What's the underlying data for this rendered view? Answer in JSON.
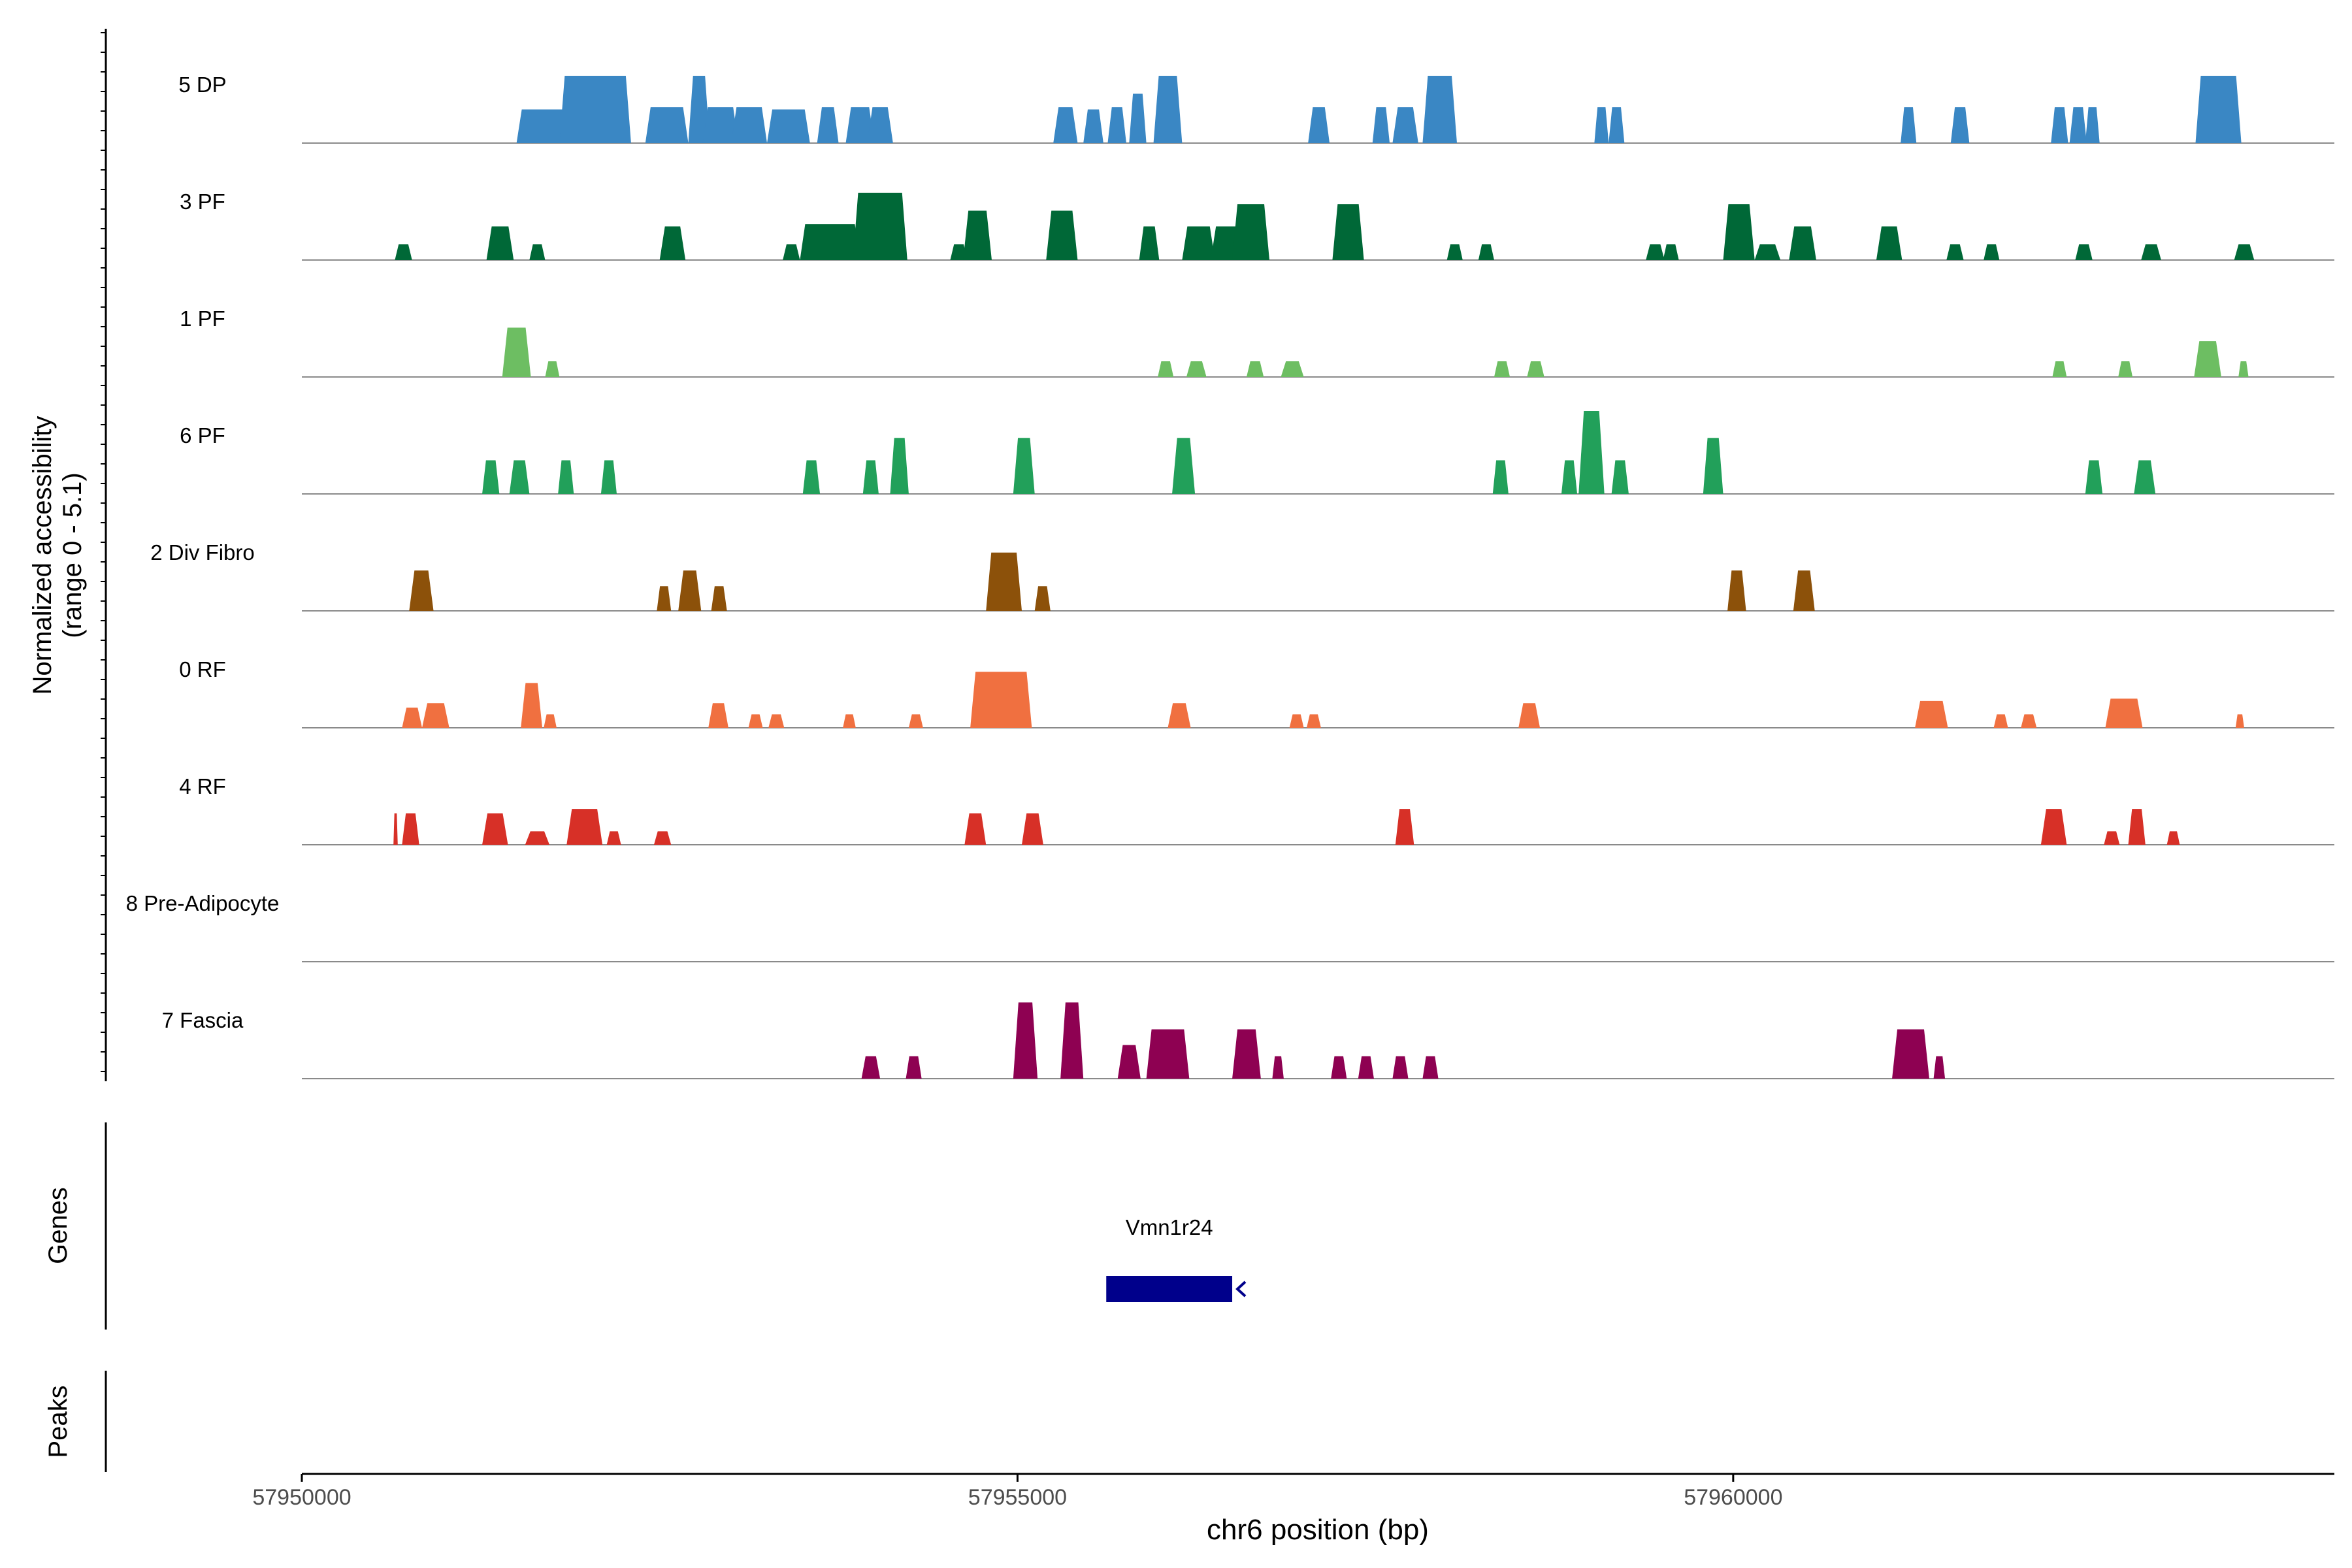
{
  "chart_data": {
    "type": "area",
    "title": "",
    "ylabel_line1": "Normalized accessibility",
    "ylabel_line2": "(range 0 - 5.1)",
    "ylim": [
      0,
      5.1
    ],
    "xlabel": "chr6 position (bp)",
    "xlim": [
      57950000,
      57964200
    ],
    "x_ticks": [
      57950000,
      57955000,
      57960000
    ],
    "x_tick_labels": [
      "57950000",
      "57955000",
      "57960000"
    ],
    "genes_label": "Genes",
    "peaks_label": "Peaks",
    "genes": [
      {
        "name": "Vmn1r24",
        "start": 57955620,
        "end": 57956500,
        "strand": "-",
        "color": "#00008B"
      }
    ],
    "series": [
      {
        "name": "5 DP",
        "color": "#3A87C4",
        "peaks": [
          [
            57951500,
            57951900,
            1.5
          ],
          [
            57951800,
            57952300,
            3.0
          ],
          [
            57952400,
            57952700,
            1.6
          ],
          [
            57952700,
            57952850,
            3.0
          ],
          [
            57952800,
            57953050,
            1.6
          ],
          [
            57953000,
            57953250,
            1.6
          ],
          [
            57953250,
            57953550,
            1.5
          ],
          [
            57953600,
            57953750,
            1.6
          ],
          [
            57953800,
            57954000,
            1.6
          ],
          [
            57953950,
            57954130,
            1.6
          ],
          [
            57955250,
            57955420,
            1.6
          ],
          [
            57955460,
            57955600,
            1.5
          ],
          [
            57955630,
            57955760,
            1.6
          ],
          [
            57955780,
            57955900,
            2.2
          ],
          [
            57955950,
            57956150,
            3.0
          ],
          [
            57957030,
            57957180,
            1.6
          ],
          [
            57957480,
            57957600,
            1.6
          ],
          [
            57957620,
            57957800,
            1.6
          ],
          [
            57957830,
            57958070,
            3.0
          ],
          [
            57959030,
            57959130,
            1.6
          ],
          [
            57959130,
            57959240,
            1.6
          ],
          [
            57961170,
            57961280,
            1.6
          ],
          [
            57961520,
            57961650,
            1.6
          ],
          [
            57962220,
            57962340,
            1.6
          ],
          [
            57962350,
            57962470,
            1.6
          ],
          [
            57962460,
            57962560,
            1.6
          ],
          [
            57963230,
            57963550,
            3.0
          ]
        ]
      },
      {
        "name": "3 PF",
        "color": "#006837",
        "peaks": [
          [
            57950650,
            57950770,
            0.7
          ],
          [
            57951290,
            57951480,
            1.5
          ],
          [
            57951590,
            57951700,
            0.7
          ],
          [
            57952500,
            57952680,
            1.5
          ],
          [
            57953360,
            57953480,
            0.7
          ],
          [
            57953480,
            57953900,
            1.6
          ],
          [
            57953850,
            57954230,
            3.0
          ],
          [
            57954530,
            57954650,
            0.7
          ],
          [
            57954620,
            57954820,
            2.2
          ],
          [
            57955200,
            57955420,
            2.2
          ],
          [
            57955850,
            57955990,
            1.5
          ],
          [
            57956150,
            57956380,
            1.5
          ],
          [
            57956350,
            57956560,
            1.5
          ],
          [
            57956500,
            57956760,
            2.5
          ],
          [
            57957200,
            57957420,
            2.5
          ],
          [
            57958000,
            57958110,
            0.7
          ],
          [
            57958220,
            57958330,
            0.7
          ],
          [
            57959390,
            57959520,
            0.7
          ],
          [
            57959510,
            57959620,
            0.7
          ],
          [
            57959930,
            57960150,
            2.5
          ],
          [
            57960150,
            57960330,
            0.7
          ],
          [
            57960390,
            57960580,
            1.5
          ],
          [
            57961000,
            57961180,
            1.5
          ],
          [
            57961490,
            57961610,
            0.7
          ],
          [
            57961750,
            57961860,
            0.7
          ],
          [
            57962390,
            57962510,
            0.7
          ],
          [
            57962850,
            57962990,
            0.7
          ],
          [
            57963500,
            57963640,
            0.7
          ]
        ]
      },
      {
        "name": "1 PF",
        "color": "#6DBE62",
        "peaks": [
          [
            57951400,
            57951600,
            2.2
          ],
          [
            57951700,
            57951800,
            0.7
          ],
          [
            57955980,
            57956090,
            0.7
          ],
          [
            57956180,
            57956320,
            0.7
          ],
          [
            57956600,
            57956720,
            0.7
          ],
          [
            57956840,
            57957000,
            0.7
          ],
          [
            57958330,
            57958440,
            0.7
          ],
          [
            57958560,
            57958680,
            0.7
          ],
          [
            57962230,
            57962330,
            0.7
          ],
          [
            57962690,
            57962790,
            0.7
          ],
          [
            57963220,
            57963410,
            1.6
          ],
          [
            57963530,
            57963600,
            0.7
          ]
        ]
      },
      {
        "name": "6 PF",
        "color": "#22A05A",
        "peaks": [
          [
            57951260,
            57951380,
            1.5
          ],
          [
            57951450,
            57951590,
            1.5
          ],
          [
            57951790,
            57951900,
            1.5
          ],
          [
            57952090,
            57952200,
            1.5
          ],
          [
            57953500,
            57953620,
            1.5
          ],
          [
            57953920,
            57954030,
            1.5
          ],
          [
            57954110,
            57954240,
            2.5
          ],
          [
            57954970,
            57955120,
            2.5
          ],
          [
            57956080,
            57956240,
            2.5
          ],
          [
            57958320,
            57958430,
            1.5
          ],
          [
            57958800,
            57958910,
            1.5
          ],
          [
            57958920,
            57959100,
            3.7
          ],
          [
            57959150,
            57959270,
            1.5
          ],
          [
            57959790,
            57959930,
            2.5
          ],
          [
            57962460,
            57962580,
            1.5
          ],
          [
            57962800,
            57962950,
            1.5
          ]
        ]
      },
      {
        "name": "2 Div Fibro",
        "color": "#8C510A",
        "peaks": [
          [
            57950750,
            57950920,
            1.8
          ],
          [
            57952480,
            57952580,
            1.1
          ],
          [
            57952630,
            57952790,
            1.8
          ],
          [
            57952860,
            57952970,
            1.1
          ],
          [
            57954780,
            57955030,
            2.6
          ],
          [
            57955120,
            57955230,
            1.1
          ],
          [
            57959960,
            57960090,
            1.8
          ],
          [
            57960420,
            57960570,
            1.8
          ]
        ]
      },
      {
        "name": "0 RF",
        "color": "#F07040",
        "peaks": [
          [
            57950700,
            57950840,
            0.9
          ],
          [
            57950840,
            57951030,
            1.1
          ],
          [
            57951530,
            57951680,
            2.0
          ],
          [
            57951690,
            57951780,
            0.6
          ],
          [
            57952840,
            57952980,
            1.1
          ],
          [
            57953120,
            57953220,
            0.6
          ],
          [
            57953260,
            57953370,
            0.6
          ],
          [
            57953780,
            57953870,
            0.6
          ],
          [
            57954240,
            57954340,
            0.6
          ],
          [
            57954670,
            57955100,
            2.5
          ],
          [
            57956050,
            57956210,
            1.1
          ],
          [
            57956900,
            57957000,
            0.6
          ],
          [
            57957020,
            57957120,
            0.6
          ],
          [
            57958500,
            57958650,
            1.1
          ],
          [
            57961270,
            57961500,
            1.2
          ],
          [
            57961820,
            57961920,
            0.6
          ],
          [
            57962010,
            57962120,
            0.6
          ],
          [
            57962600,
            57962860,
            1.3
          ],
          [
            57963510,
            57963570,
            0.6
          ]
        ]
      },
      {
        "name": "4 RF",
        "color": "#D73027",
        "peaks": [
          [
            57950640,
            57950670,
            1.4
          ],
          [
            57950700,
            57950820,
            1.4
          ],
          [
            57951260,
            57951440,
            1.4
          ],
          [
            57951560,
            57951730,
            0.6
          ],
          [
            57951850,
            57952100,
            1.6
          ],
          [
            57952130,
            57952230,
            0.6
          ],
          [
            57952460,
            57952580,
            0.6
          ],
          [
            57954630,
            57954780,
            1.4
          ],
          [
            57955030,
            57955180,
            1.4
          ],
          [
            57957640,
            57957770,
            1.6
          ],
          [
            57962150,
            57962330,
            1.6
          ],
          [
            57962590,
            57962700,
            0.6
          ],
          [
            57962760,
            57962880,
            1.6
          ],
          [
            57963030,
            57963120,
            0.6
          ]
        ]
      },
      {
        "name": "8 Pre-Adipocyte",
        "color": "#9E9E9E",
        "peaks": []
      },
      {
        "name": "7 Fascia",
        "color": "#8E0152",
        "peaks": [
          [
            57953910,
            57954040,
            1.0
          ],
          [
            57954220,
            57954330,
            1.0
          ],
          [
            57954970,
            57955140,
            3.4
          ],
          [
            57955300,
            57955460,
            3.4
          ],
          [
            57955700,
            57955860,
            1.5
          ],
          [
            57955900,
            57956200,
            2.2
          ],
          [
            57956500,
            57956700,
            2.2
          ],
          [
            57956780,
            57956860,
            1.0
          ],
          [
            57957190,
            57957300,
            1.0
          ],
          [
            57957380,
            57957490,
            1.0
          ],
          [
            57957620,
            57957730,
            1.0
          ],
          [
            57957830,
            57957940,
            1.0
          ],
          [
            57961110,
            57961370,
            2.2
          ],
          [
            57961400,
            57961480,
            1.0
          ]
        ]
      }
    ]
  }
}
